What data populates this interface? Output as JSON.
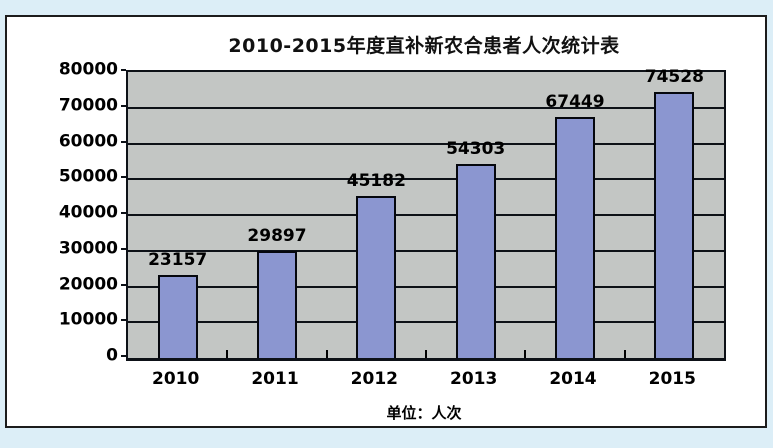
{
  "page": {
    "background_color": "#dceef7"
  },
  "chart_frame": {
    "background_color": "#ffffff",
    "border_color": "#1c1c1c"
  },
  "chart_data": {
    "type": "bar",
    "title": "2010-2015年度直补新农合患者人次统计表",
    "unit_label": "单位：人次",
    "xlabel": "",
    "ylabel": "",
    "categories": [
      "2010",
      "2011",
      "2012",
      "2013",
      "2014",
      "2015"
    ],
    "values": [
      23157,
      29897,
      45182,
      54303,
      67449,
      74528
    ],
    "ylim": [
      0,
      80000
    ],
    "yticks": [
      0,
      10000,
      20000,
      30000,
      40000,
      50000,
      60000,
      70000,
      80000
    ],
    "grid": "horizontal-major",
    "legend": "none",
    "bar_color": "#8b96d0",
    "bar_border_color": "#05070d",
    "plot_background_color": "#c3c6c4",
    "gridline_color": "#0d1117",
    "text_color": "#000000"
  }
}
